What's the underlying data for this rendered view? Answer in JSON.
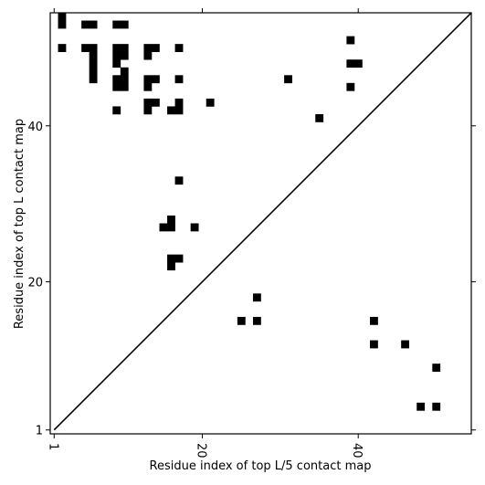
{
  "chart_data": {
    "type": "heatmap",
    "title": "",
    "xlabel": "Residue index of top L/5 contact map",
    "ylabel": "Residue index of top L contact map",
    "xlim": [
      0.5,
      54.5
    ],
    "ylim": [
      0.5,
      54.5
    ],
    "x_ticks": [
      1,
      20,
      40
    ],
    "y_ticks": [
      1,
      20,
      40
    ],
    "x_tick_labels": [
      "1",
      "20",
      "40"
    ],
    "y_tick_labels": [
      "1",
      "20",
      "40"
    ],
    "x_tick_rotation": "vertical",
    "diagonal": "y = x",
    "grid": false,
    "colors": {
      "cell": "#000000",
      "background": "#ffffff",
      "frame": "#000000"
    },
    "upper_contacts": [
      [
        2,
        54
      ],
      [
        2,
        53
      ],
      [
        2,
        50
      ],
      [
        5,
        53
      ],
      [
        5,
        50
      ],
      [
        6,
        53
      ],
      [
        6,
        50
      ],
      [
        6,
        49
      ],
      [
        6,
        48
      ],
      [
        6,
        47
      ],
      [
        6,
        46
      ],
      [
        9,
        53
      ],
      [
        9,
        50
      ],
      [
        9,
        49
      ],
      [
        9,
        48
      ],
      [
        9,
        46
      ],
      [
        9,
        45
      ],
      [
        10,
        53
      ],
      [
        10,
        50
      ],
      [
        10,
        49
      ],
      [
        10,
        47
      ],
      [
        10,
        46
      ],
      [
        10,
        45
      ],
      [
        9,
        42
      ],
      [
        13,
        50
      ],
      [
        13,
        49
      ],
      [
        13,
        46
      ],
      [
        13,
        45
      ],
      [
        13,
        43
      ],
      [
        13,
        42
      ],
      [
        14,
        50
      ],
      [
        14,
        46
      ],
      [
        14,
        43
      ],
      [
        16,
        42
      ],
      [
        16,
        28
      ],
      [
        16,
        27
      ],
      [
        16,
        23
      ],
      [
        16,
        22
      ],
      [
        17,
        50
      ],
      [
        17,
        46
      ],
      [
        17,
        43
      ],
      [
        17,
        42
      ],
      [
        17,
        33
      ],
      [
        17,
        23
      ],
      [
        15,
        27
      ],
      [
        19,
        27
      ],
      [
        21,
        43
      ],
      [
        31,
        46
      ],
      [
        35,
        41
      ],
      [
        39,
        51
      ],
      [
        39,
        48
      ],
      [
        39,
        45
      ],
      [
        40,
        48
      ]
    ],
    "lower_contacts": [
      [
        25,
        15
      ],
      [
        27,
        18
      ],
      [
        27,
        15
      ],
      [
        42,
        15
      ],
      [
        42,
        12
      ],
      [
        46,
        12
      ],
      [
        48,
        4
      ],
      [
        50,
        9
      ],
      [
        50,
        4
      ]
    ]
  }
}
